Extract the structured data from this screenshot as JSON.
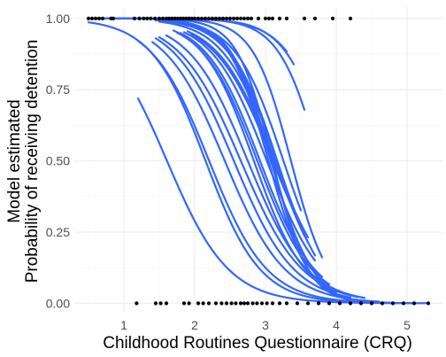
{
  "chart_data": {
    "type": "line",
    "xlabel": "Childhood Routines Questionnaire (CRQ)",
    "ylabel_lines": [
      "Model estimated",
      "Probability of receiving detention"
    ],
    "xlim": [
      0.3,
      5.5
    ],
    "ylim": [
      -0.03,
      1.04
    ],
    "x_ticks": [
      1,
      2,
      3,
      4,
      5
    ],
    "x_tick_labels": [
      "1",
      "2",
      "3",
      "4",
      "5"
    ],
    "y_ticks": [
      0,
      0.25,
      0.5,
      0.75,
      1
    ],
    "y_tick_labels": [
      "0.00",
      "0.25",
      "0.50",
      "0.75",
      "1.00"
    ],
    "grid": true,
    "line_color": "#3366ff",
    "point_color": "#000000",
    "curves": [
      {
        "x0": 0.5,
        "x1": 5.3,
        "a": 5.6,
        "b": 2.6
      },
      {
        "x0": 1.2,
        "x1": 5.1,
        "a": 3.7,
        "b": 2.3
      },
      {
        "x0": 1.2,
        "x1": 4.8,
        "a": 5.4,
        "b": 2.45
      },
      {
        "x0": 1.4,
        "x1": 4.6,
        "a": 5.7,
        "b": 2.35
      },
      {
        "x0": 1.45,
        "x1": 4.2,
        "a": 6.0,
        "b": 2.35
      },
      {
        "x0": 1.5,
        "x1": 4.3,
        "a": 6.1,
        "b": 2.3
      },
      {
        "x0": 1.6,
        "x1": 4.4,
        "a": 6.6,
        "b": 2.4
      },
      {
        "x0": 1.7,
        "x1": 4.0,
        "a": 7.8,
        "b": 2.75
      },
      {
        "x0": 1.75,
        "x1": 3.9,
        "a": 7.5,
        "b": 2.6
      },
      {
        "x0": 1.8,
        "x1": 3.8,
        "a": 7.6,
        "b": 2.6
      },
      {
        "x0": 1.85,
        "x1": 3.7,
        "a": 7.7,
        "b": 2.55
      },
      {
        "x0": 1.9,
        "x1": 3.6,
        "a": 7.8,
        "b": 2.5
      },
      {
        "x0": 1.95,
        "x1": 3.5,
        "a": 7.6,
        "b": 2.45
      },
      {
        "x0": 1.45,
        "x1": 3.55,
        "a": 9.3,
        "b": 2.95
      },
      {
        "x0": 1.6,
        "x1": 3.5,
        "a": 9.6,
        "b": 2.95
      },
      {
        "x0": 1.5,
        "x1": 3.6,
        "a": 8.6,
        "b": 2.75
      },
      {
        "x0": 1.65,
        "x1": 3.7,
        "a": 9.5,
        "b": 3.0
      },
      {
        "x0": 1.5,
        "x1": 3.9,
        "a": 10.3,
        "b": 3.35
      },
      {
        "x0": 1.6,
        "x1": 4.0,
        "a": 10.8,
        "b": 3.5
      },
      {
        "x0": 1.8,
        "x1": 4.2,
        "a": 10.8,
        "b": 3.55
      },
      {
        "x0": 0.5,
        "x1": 4.2,
        "a": 12.4,
        "b": 4.0
      },
      {
        "x0": 0.5,
        "x1": 3.8,
        "a": 12.6,
        "b": 3.75
      },
      {
        "x0": 0.5,
        "x1": 3.55,
        "a": 13.0,
        "b": 3.45
      },
      {
        "x0": 0.5,
        "x1": 3.4,
        "a": 12.7,
        "b": 3.25
      },
      {
        "x0": 0.5,
        "x1": 3.3,
        "a": 12.1,
        "b": 3.05
      }
    ],
    "points_y1": [
      0.5,
      0.55,
      0.6,
      0.65,
      0.7,
      0.82,
      0.85,
      1.15,
      1.22,
      1.28,
      1.33,
      1.38,
      1.44,
      1.5,
      1.55,
      1.6,
      1.64,
      1.68,
      1.72,
      1.76,
      1.8,
      1.84,
      1.88,
      1.92,
      1.96,
      2.0,
      2.05,
      2.1,
      2.15,
      2.2,
      2.25,
      2.3,
      2.35,
      2.4,
      2.45,
      2.5,
      2.55,
      2.6,
      2.65,
      2.7,
      2.75,
      2.8,
      2.9,
      3.0,
      3.05,
      3.1,
      3.2,
      3.3,
      3.55,
      3.7,
      3.95,
      4.2
    ],
    "points_y0": [
      1.18,
      1.45,
      1.52,
      1.6,
      1.85,
      1.92,
      2.05,
      2.12,
      2.2,
      2.3,
      2.38,
      2.45,
      2.52,
      2.58,
      2.65,
      2.7,
      2.75,
      2.82,
      2.88,
      2.95,
      3.02,
      3.1,
      3.2,
      3.3,
      3.45,
      3.6,
      3.75,
      3.9,
      4.05,
      4.2,
      4.35,
      4.5,
      4.65,
      4.8,
      4.95,
      5.1,
      5.3
    ]
  }
}
